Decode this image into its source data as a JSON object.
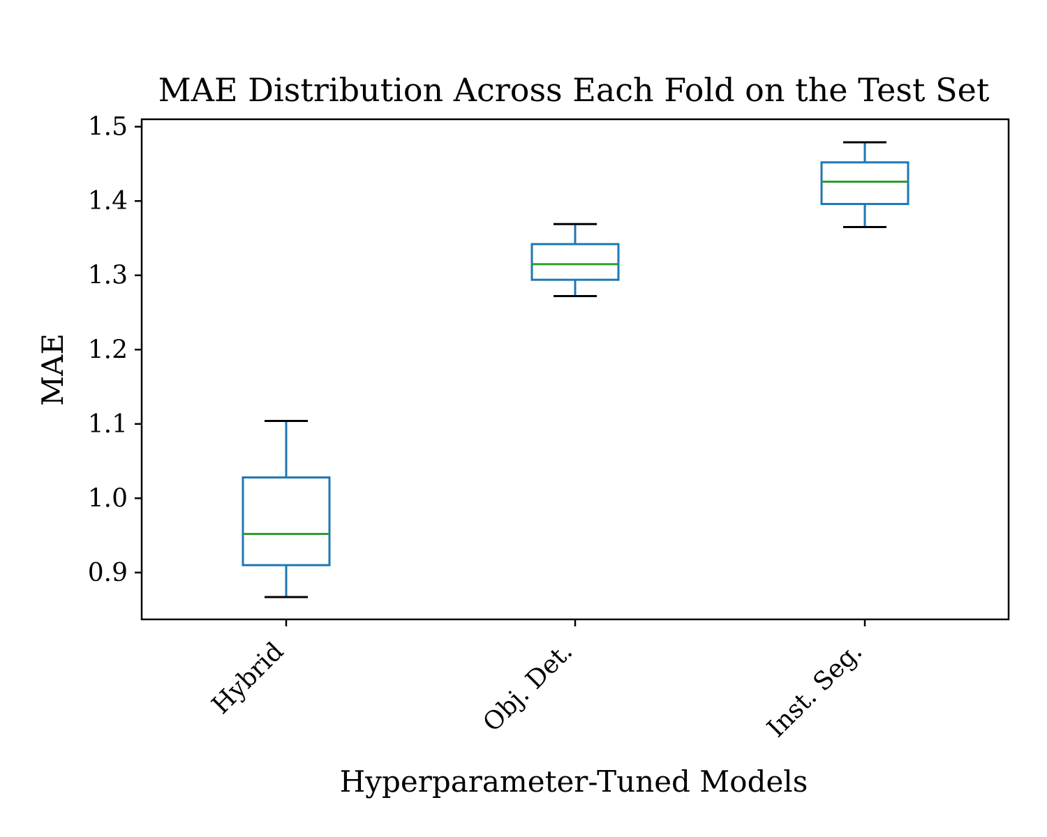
{
  "chart_data": {
    "type": "boxplot",
    "title": "MAE Distribution Across Each Fold on the Test Set",
    "xlabel": "Hyperparameter-Tuned Models",
    "ylabel": "MAE",
    "categories": [
      "Hybrid",
      "Obj. Det.",
      "Inst. Seg."
    ],
    "boxes": [
      {
        "whisker_low": 0.867,
        "q1": 0.91,
        "median": 0.952,
        "q3": 1.028,
        "whisker_high": 1.104
      },
      {
        "whisker_low": 1.272,
        "q1": 1.294,
        "median": 1.315,
        "q3": 1.342,
        "whisker_high": 1.369
      },
      {
        "whisker_low": 1.365,
        "q1": 1.396,
        "median": 1.426,
        "q3": 1.452,
        "whisker_high": 1.479
      }
    ],
    "ylim": [
      0.837,
      1.51
    ],
    "yticks": [
      "0.9",
      "1.0",
      "1.1",
      "1.2",
      "1.3",
      "1.4",
      "1.5"
    ],
    "grid": false,
    "colors": {
      "box": "#1f77b4",
      "median": "#2ca02c",
      "cap": "#000000",
      "axes": "#000000"
    }
  }
}
